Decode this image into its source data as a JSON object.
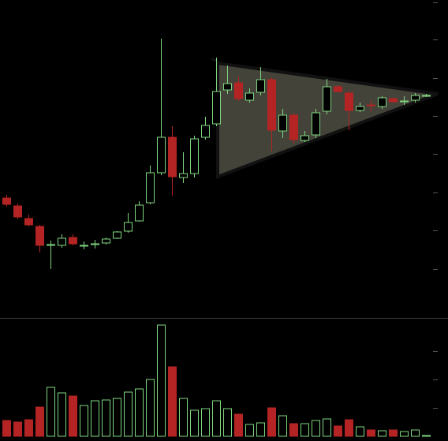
{
  "chart_data": [
    {
      "type": "candlestick",
      "categories": [
        null,
        null,
        null,
        null,
        null,
        null,
        null,
        null,
        null,
        null,
        null,
        null,
        null,
        null,
        null,
        null,
        null,
        null,
        null,
        null,
        null,
        null,
        null,
        null,
        null,
        null,
        null,
        null,
        null,
        null,
        null,
        null,
        null,
        null,
        null,
        null,
        null,
        null,
        null
      ],
      "open": [
        149,
        139,
        123,
        113,
        89,
        89,
        99,
        89,
        91,
        92,
        98,
        107,
        120,
        143,
        181,
        226,
        175,
        180,
        226,
        243,
        286,
        295,
        273,
        283,
        299,
        234,
        254,
        222,
        229,
        259,
        290,
        282,
        260,
        267,
        265,
        275,
        272,
        273,
        279
      ],
      "close": [
        141,
        125,
        115,
        89,
        90,
        98,
        91,
        89,
        91,
        97,
        106,
        118,
        140,
        181,
        226,
        176,
        180,
        224,
        241,
        284,
        294,
        275,
        282,
        299,
        235,
        254,
        223,
        228,
        257,
        290,
        284,
        260,
        265,
        266,
        276,
        271,
        272,
        279,
        279
      ],
      "high": [
        153,
        142,
        128,
        115,
        95,
        103,
        103,
        94,
        96,
        99,
        107,
        130,
        145,
        190,
        351,
        240,
        207,
        228,
        252,
        327,
        317,
        303,
        288,
        315,
        302,
        262,
        257,
        234,
        262,
        300,
        292,
        285,
        270,
        273,
        278,
        276,
        278,
        282,
        281
      ],
      "low": [
        138,
        122,
        113,
        80,
        59,
        86,
        89,
        84,
        85,
        90,
        97,
        105,
        119,
        141,
        178,
        152,
        168,
        175,
        223,
        240,
        281,
        272,
        270,
        279,
        208,
        225,
        218,
        220,
        225,
        255,
        283,
        235,
        258,
        259,
        262,
        270,
        267,
        270,
        277
      ],
      "up_color": "#7fd67f",
      "down_color": "#b52424",
      "ylim": [
        -3,
        400
      ],
      "yticks": [
        59,
        108,
        156,
        205,
        253,
        301,
        350,
        397
      ]
    },
    {
      "type": "bar",
      "categories": [
        null,
        null,
        null,
        null,
        null,
        null,
        null,
        null,
        null,
        null,
        null,
        null,
        null,
        null,
        null,
        null,
        null,
        null,
        null,
        null,
        null,
        null,
        null,
        null,
        null,
        null,
        null,
        null,
        null,
        null,
        null,
        null,
        null,
        null,
        null,
        null,
        null,
        null,
        null
      ],
      "values": [
        20,
        18,
        21,
        37,
        62,
        55,
        51,
        39,
        45,
        46,
        48,
        56,
        60,
        72,
        141,
        88,
        48,
        33,
        35,
        45,
        35,
        28,
        15,
        17,
        36,
        26,
        16,
        16,
        20,
        22,
        13,
        21,
        12,
        8,
        7,
        8,
        6,
        8,
        1
      ],
      "up_color": "#7fd67f",
      "down_color": "#b52424",
      "ylim": [
        -6,
        150
      ],
      "yticks": [
        36,
        72,
        108
      ]
    }
  ]
}
